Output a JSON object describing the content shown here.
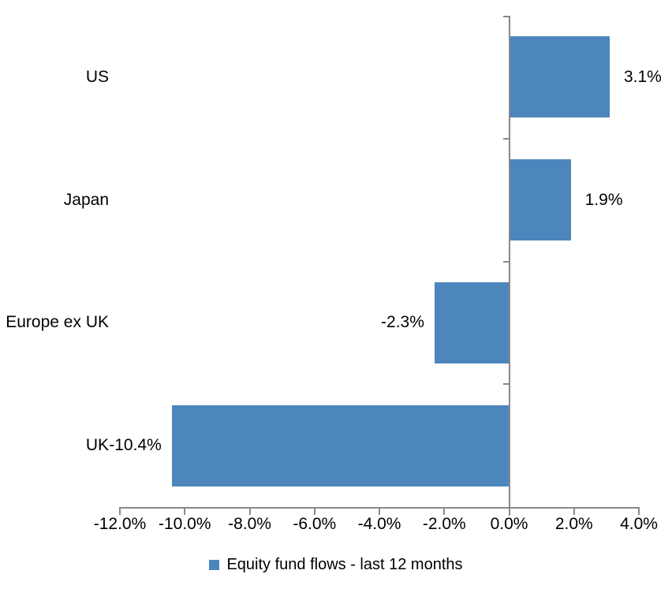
{
  "chart_data": {
    "type": "bar",
    "orientation": "horizontal",
    "title": "",
    "xlabel": "",
    "ylabel": "",
    "grid": false,
    "background": "#FFFFFF",
    "axis_color": "#898989",
    "text_color": "#000000",
    "categories": [
      "US",
      "Japan",
      "Europe ex UK",
      "UK"
    ],
    "series": [
      {
        "name": "Equity fund flows - last 12 months",
        "color": "#4D86BC",
        "values": [
          3.1,
          1.9,
          -2.3,
          -10.4
        ],
        "data_labels": [
          "3.1%",
          "1.9%",
          "-2.3%",
          "-10.4%"
        ]
      }
    ],
    "x_axis": {
      "min": -12,
      "max": 4,
      "tick_step": 2,
      "tick_values": [
        -12,
        -10,
        -8,
        -6,
        -4,
        -2,
        0,
        2,
        4
      ],
      "tick_labels": [
        "-12.0%",
        "-10.0%",
        "-8.0%",
        "-6.0%",
        "-4.0%",
        "-2.0%",
        "0.0%",
        "2.0%",
        "4.0%"
      ]
    },
    "legend": {
      "position": "bottom",
      "entries": [
        {
          "label": "Equity fund flows - last 12 months",
          "color": "#4D86BC",
          "marker": "square"
        }
      ]
    }
  }
}
